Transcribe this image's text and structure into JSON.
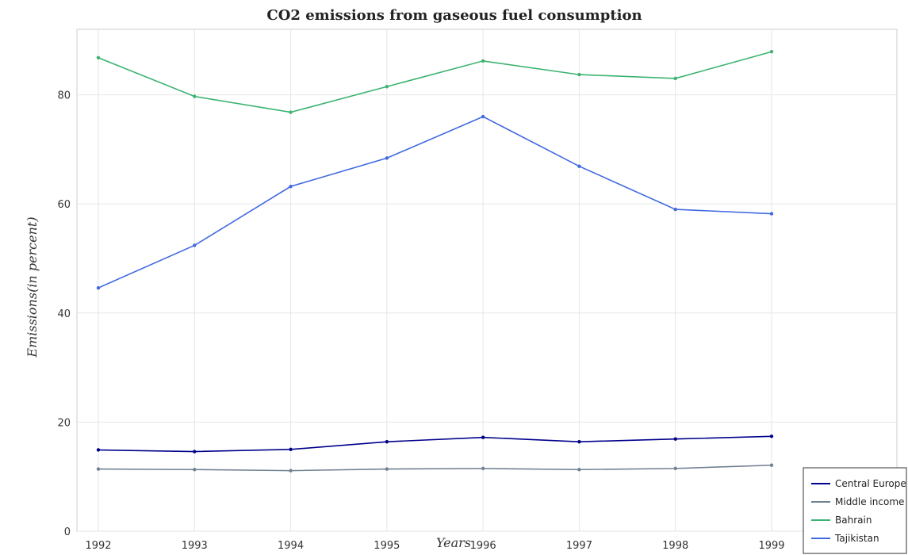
{
  "chart_data": {
    "type": "line",
    "title": "CO2 emissions from gaseous fuel consumption",
    "xlabel": "Years",
    "ylabel": "Emissions(in percent)",
    "x": [
      "1992",
      "1993",
      "1994",
      "1995",
      "1996",
      "1997",
      "1998",
      "1999"
    ],
    "ylim": [
      0,
      92
    ],
    "yticks": [
      "0",
      "20",
      "40",
      "60",
      "80"
    ],
    "grid": true,
    "legend_position": "bottom-right",
    "series": [
      {
        "name": "Central Europe",
        "color": "#00008b",
        "values": [
          14.9,
          14.6,
          15.0,
          16.4,
          17.2,
          16.4,
          16.9,
          17.4
        ]
      },
      {
        "name": "Middle income",
        "color": "#708090",
        "values": [
          11.4,
          11.3,
          11.1,
          11.4,
          11.5,
          11.3,
          11.5,
          12.1
        ]
      },
      {
        "name": "Bahrain",
        "color": "#3cb371",
        "values": [
          86.8,
          79.7,
          76.8,
          81.5,
          86.2,
          83.7,
          83.0,
          87.9
        ]
      },
      {
        "name": "Tajikistan",
        "color": "#4169e1",
        "values": [
          44.6,
          52.4,
          63.2,
          68.4,
          76.0,
          66.9,
          59.0,
          58.2
        ]
      }
    ]
  }
}
